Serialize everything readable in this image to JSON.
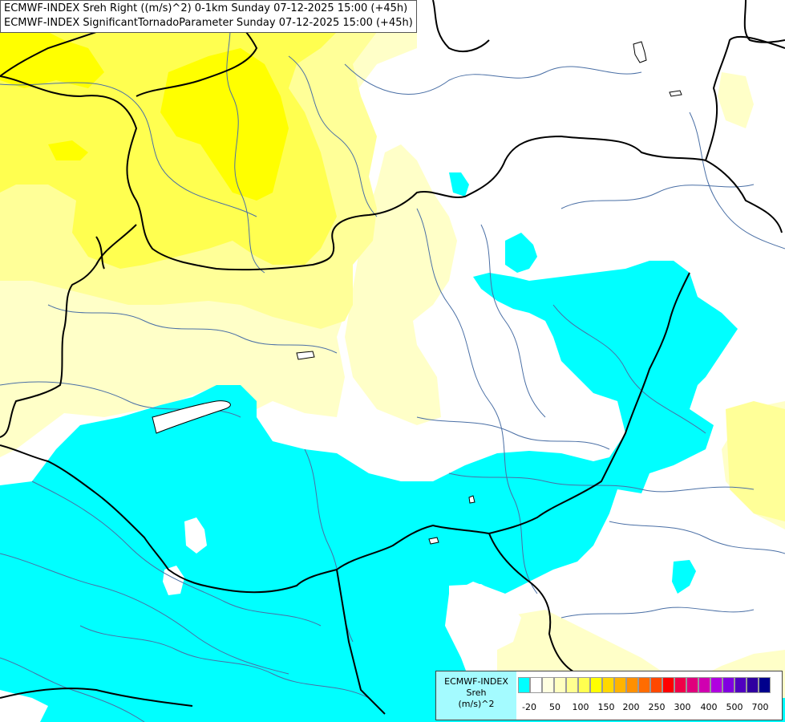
{
  "title": {
    "line1": "ECMWF-INDEX Sreh Right ((m/s)^2) 0-1km Sunday 07-12-2025 15:00 (+45h)",
    "line2": "ECMWF-INDEX SignificantTornadoParameter Sunday 07-12-2025 15:00 (+45h)"
  },
  "legend": {
    "source": "ECMWF-INDEX",
    "variable": "Sreh",
    "unit": "(m/s)^2",
    "colors": [
      "#00ffff",
      "#ffffff",
      "#ffffe0",
      "#ffffc0",
      "#ffff90",
      "#ffff50",
      "#ffff00",
      "#ffd800",
      "#ffb400",
      "#ff9000",
      "#ff6c00",
      "#ff4800",
      "#ff0000",
      "#f00048",
      "#e0007c",
      "#d000b0",
      "#b000e0",
      "#8000e0",
      "#5000c0",
      "#3000a0",
      "#00008c"
    ],
    "tick_labels": [
      "-20",
      "50",
      "100",
      "150",
      "200",
      "250",
      "300",
      "400",
      "500",
      "700"
    ]
  },
  "colors": {
    "cyan": "#00ffff",
    "pale_yellow": "#ffffc0",
    "light_yellow": "#ffff90",
    "yellow": "#ffff50",
    "bright_yellow": "#ffff00",
    "river": "#4a6fa5",
    "border": "#000000"
  }
}
